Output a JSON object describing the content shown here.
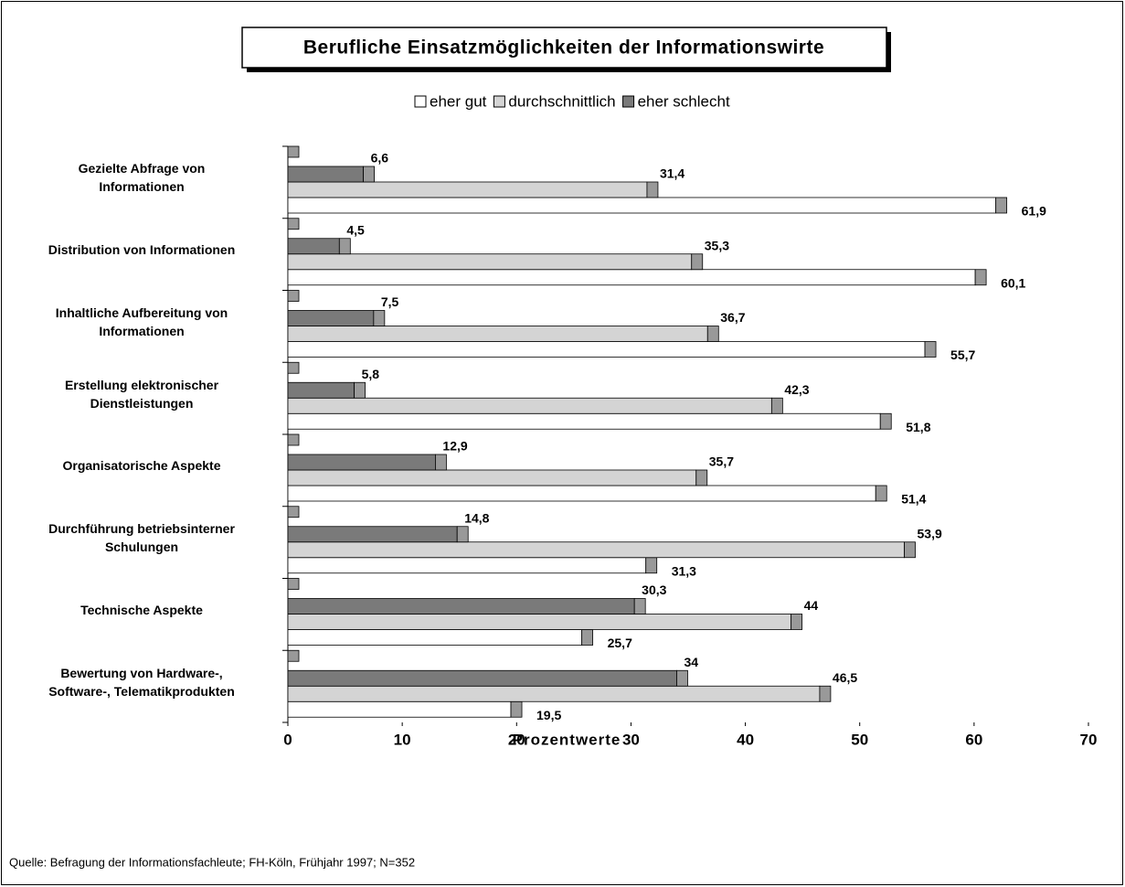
{
  "chart_data": {
    "type": "bar",
    "title": "Berufliche Einsatzmöglichkeiten der Informationswirte",
    "categories": [
      "Gezielte Abfrage von\nInformationen",
      "Distribution von Informationen",
      "Inhaltliche Aufbereitung von\nInformationen",
      "Erstellung elektronischer\nDienstleistungen",
      "Organisatorische Aspekte",
      "Durchführung betriebsinterner\nSchulungen",
      "Technische Aspekte",
      "Bewertung von Hardware-,\nSoftware-, Telematikprodukten"
    ],
    "series": [
      {
        "name": "eher gut",
        "color": "#ffffff",
        "values": [
          61.9,
          60.1,
          55.7,
          51.8,
          51.4,
          31.3,
          25.7,
          19.5
        ],
        "value_labels": [
          "61,9",
          "60,1",
          "55,7",
          "51,8",
          "51,4",
          "31,3",
          "25,7",
          "19,5"
        ]
      },
      {
        "name": "durchschnittlich",
        "color": "#d4d4d4",
        "values": [
          31.4,
          35.3,
          36.7,
          42.3,
          35.7,
          53.9,
          44,
          46.5
        ],
        "value_labels": [
          "31,4",
          "35,3",
          "36,7",
          "42,3",
          "35,7",
          "53,9",
          "44",
          "46,5"
        ]
      },
      {
        "name": "eher schlecht",
        "color": "#7a7a7a",
        "values": [
          6.6,
          4.5,
          7.5,
          5.8,
          12.9,
          14.8,
          30.3,
          34
        ],
        "value_labels": [
          "6,6",
          "4,5",
          "7,5",
          "5,8",
          "12,9",
          "14,8",
          "30,3",
          "34"
        ]
      }
    ],
    "xlim": [
      0,
      70
    ],
    "xticks": [
      0,
      10,
      20,
      30,
      40,
      50,
      60,
      70
    ],
    "xlabel": "Prozentwerte",
    "note": "Quelle: Befragung der Informationsfachleute; FH-Köln, Frühjahr 1997; N=352"
  }
}
